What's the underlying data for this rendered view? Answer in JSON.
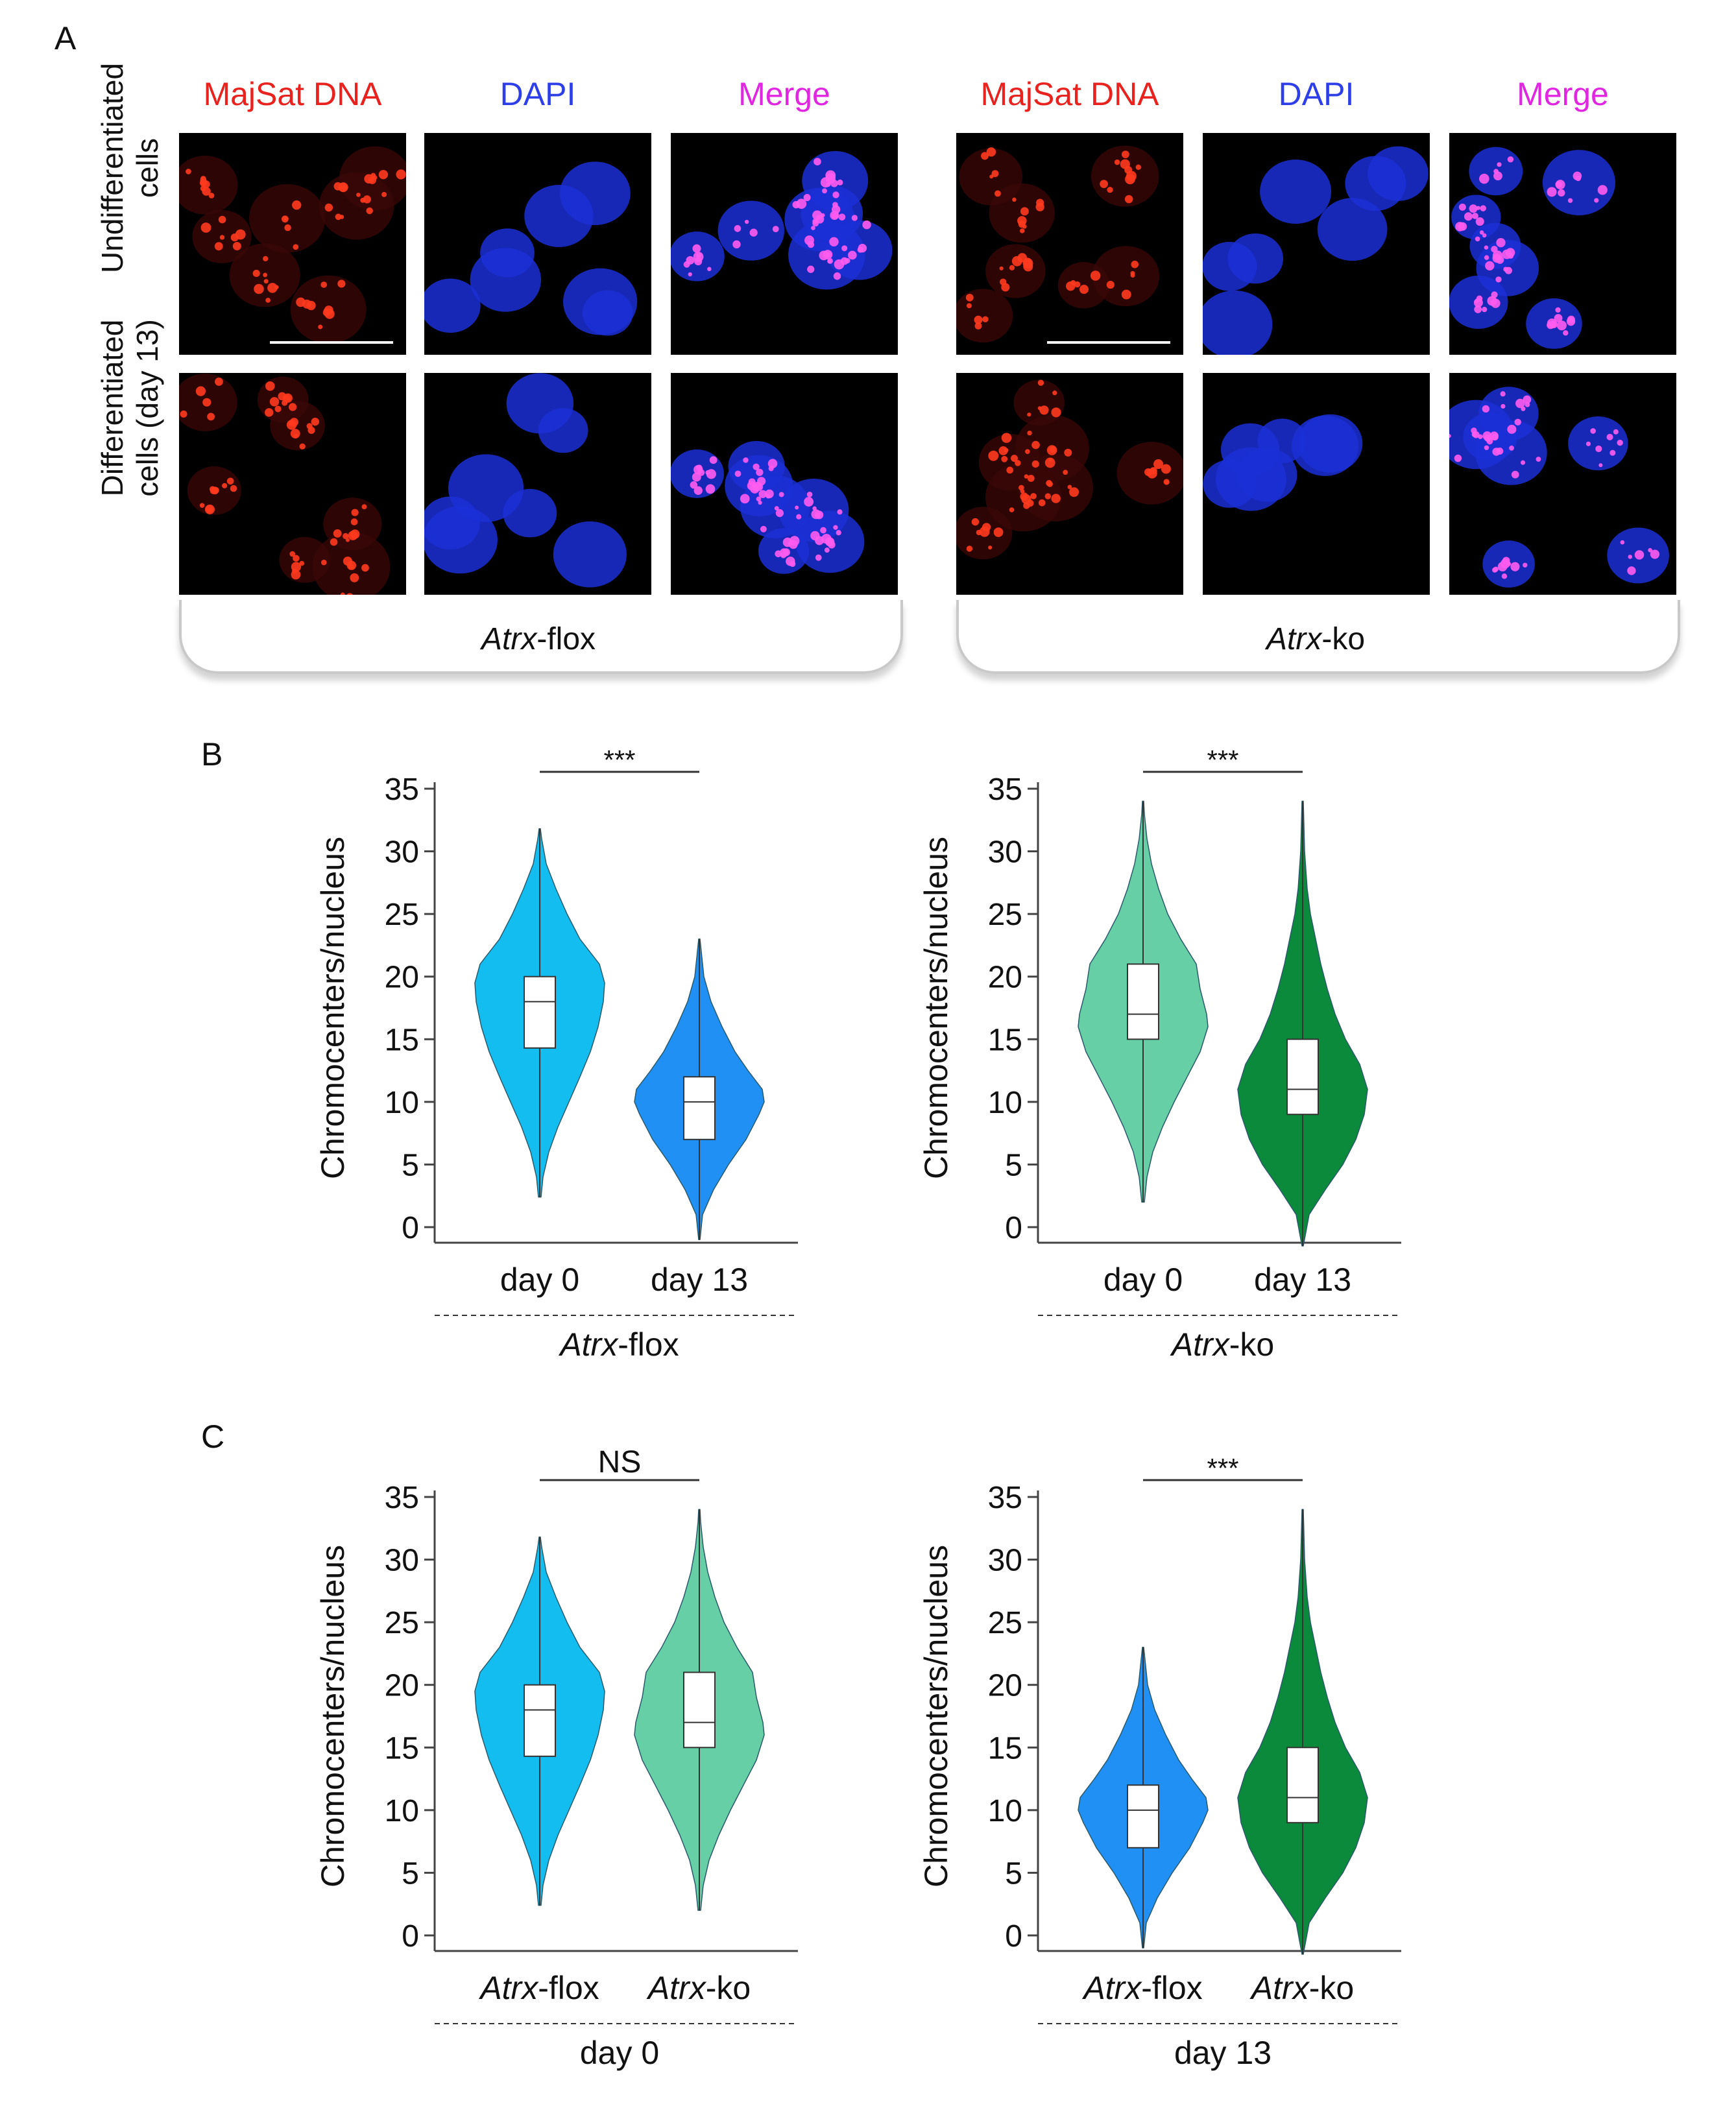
{
  "panelA": {
    "letter": "A",
    "groups": [
      {
        "channels": [
          {
            "label": "MajSat DNA",
            "color": "#e8221e"
          },
          {
            "label": "DAPI",
            "color": "#2f3fe8"
          },
          {
            "label": "Merge",
            "color": "#e026e0"
          }
        ],
        "genotype_italic": "Atrx",
        "genotype_suffix": "-flox"
      },
      {
        "channels": [
          {
            "label": "MajSat DNA",
            "color": "#e8221e"
          },
          {
            "label": "DAPI",
            "color": "#2f3fe8"
          },
          {
            "label": "Merge",
            "color": "#e026e0"
          }
        ],
        "genotype_italic": "Atrx",
        "genotype_suffix": "-ko"
      }
    ],
    "rows": [
      {
        "label_line1": "Undifferentiated",
        "label_line2": "cells"
      },
      {
        "label_line1": "Differentiated",
        "label_line2": "cells (day 13)"
      }
    ]
  },
  "panelB": {
    "letter": "B"
  },
  "panelC": {
    "letter": "C"
  },
  "chart_data": [
    {
      "type": "violin",
      "panel": "B",
      "ylabel": "Chromocenters/nucleus",
      "ylim": [
        0,
        35
      ],
      "yticks": [
        "0",
        "5",
        "10",
        "15",
        "20",
        "25",
        "30",
        "35"
      ],
      "categories": [
        {
          "italic": "",
          "text": "day 0"
        },
        {
          "italic": "",
          "text": "day 13"
        }
      ],
      "group_label": {
        "italic": "Atrx",
        "text": "-flox"
      },
      "significance": "***",
      "violins": [
        {
          "color": "#14bdf0",
          "min": 2.4,
          "max": 31.8,
          "q1": 14.3,
          "median": 18.0,
          "q3": 20.0,
          "whisker_low": 5.5,
          "whisker_high": 29.5,
          "profile": [
            [
              2.4,
              0.02
            ],
            [
              4,
              0.05
            ],
            [
              6,
              0.14
            ],
            [
              8,
              0.28
            ],
            [
              10,
              0.45
            ],
            [
              12,
              0.62
            ],
            [
              14,
              0.78
            ],
            [
              16,
              0.9
            ],
            [
              18,
              0.98
            ],
            [
              19.5,
              1.0
            ],
            [
              21,
              0.92
            ],
            [
              23,
              0.62
            ],
            [
              25,
              0.42
            ],
            [
              27,
              0.25
            ],
            [
              29,
              0.1
            ],
            [
              31,
              0.03
            ],
            [
              31.8,
              0.01
            ]
          ]
        },
        {
          "color": "#2090f5",
          "min": -1.0,
          "max": 23.0,
          "q1": 7.0,
          "median": 10.0,
          "q3": 12.0,
          "whisker_low": 2.0,
          "whisker_high": 20.0,
          "profile": [
            [
              -1,
              0.01
            ],
            [
              1,
              0.05
            ],
            [
              3,
              0.22
            ],
            [
              5,
              0.45
            ],
            [
              7,
              0.72
            ],
            [
              9,
              0.92
            ],
            [
              10,
              1.0
            ],
            [
              11,
              0.97
            ],
            [
              12.5,
              0.75
            ],
            [
              14,
              0.55
            ],
            [
              16,
              0.35
            ],
            [
              18,
              0.18
            ],
            [
              20,
              0.07
            ],
            [
              22,
              0.03
            ],
            [
              23,
              0.01
            ]
          ]
        }
      ]
    },
    {
      "type": "violin",
      "panel": "B",
      "ylabel": "Chromocenters/nucleus",
      "ylim": [
        0,
        35
      ],
      "yticks": [
        "0",
        "5",
        "10",
        "15",
        "20",
        "25",
        "30",
        "35"
      ],
      "categories": [
        {
          "italic": "",
          "text": "day 0"
        },
        {
          "italic": "",
          "text": "day 13"
        }
      ],
      "group_label": {
        "italic": "Atrx",
        "text": "-ko"
      },
      "significance": "***",
      "violins": [
        {
          "color": "#66cfa6",
          "min": 2.0,
          "max": 34.0,
          "q1": 15.0,
          "median": 17.0,
          "q3": 21.0,
          "whisker_low": 5.0,
          "whisker_high": 31.0,
          "profile": [
            [
              2,
              0.02
            ],
            [
              4,
              0.06
            ],
            [
              6,
              0.15
            ],
            [
              8,
              0.3
            ],
            [
              10,
              0.48
            ],
            [
              12,
              0.68
            ],
            [
              14,
              0.88
            ],
            [
              16,
              1.0
            ],
            [
              17,
              0.98
            ],
            [
              19,
              0.88
            ],
            [
              21,
              0.82
            ],
            [
              23,
              0.58
            ],
            [
              25,
              0.38
            ],
            [
              27,
              0.24
            ],
            [
              29,
              0.13
            ],
            [
              31,
              0.06
            ],
            [
              33,
              0.02
            ],
            [
              34,
              0.01
            ]
          ]
        },
        {
          "color": "#0c8a3c",
          "min": -1.5,
          "max": 34.0,
          "q1": 9.0,
          "median": 11.0,
          "q3": 15.0,
          "whisker_low": 2.0,
          "whisker_high": 30.0,
          "profile": [
            [
              -1.5,
              0.01
            ],
            [
              1,
              0.1
            ],
            [
              3,
              0.35
            ],
            [
              5,
              0.62
            ],
            [
              7,
              0.82
            ],
            [
              9,
              0.95
            ],
            [
              11,
              1.0
            ],
            [
              13,
              0.88
            ],
            [
              15,
              0.66
            ],
            [
              17,
              0.5
            ],
            [
              19,
              0.38
            ],
            [
              21,
              0.28
            ],
            [
              23,
              0.2
            ],
            [
              25,
              0.12
            ],
            [
              27,
              0.07
            ],
            [
              30,
              0.03
            ],
            [
              34,
              0.01
            ]
          ]
        }
      ]
    },
    {
      "type": "violin",
      "panel": "C",
      "ylabel": "Chromocenters/nucleus",
      "ylim": [
        0,
        35
      ],
      "yticks": [
        "0",
        "5",
        "10",
        "15",
        "20",
        "25",
        "30",
        "35"
      ],
      "categories": [
        {
          "italic": "Atrx",
          "text": "-flox"
        },
        {
          "italic": "Atrx",
          "text": "-ko"
        }
      ],
      "group_label": {
        "italic": "",
        "text": "day 0"
      },
      "significance": "NS",
      "violins": [
        {
          "color": "#14bdf0",
          "min": 2.4,
          "max": 31.8,
          "q1": 14.3,
          "median": 18.0,
          "q3": 20.0,
          "whisker_low": 5.5,
          "whisker_high": 29.5,
          "profile": [
            [
              2.4,
              0.02
            ],
            [
              4,
              0.05
            ],
            [
              6,
              0.14
            ],
            [
              8,
              0.28
            ],
            [
              10,
              0.45
            ],
            [
              12,
              0.62
            ],
            [
              14,
              0.78
            ],
            [
              16,
              0.9
            ],
            [
              18,
              0.98
            ],
            [
              19.5,
              1.0
            ],
            [
              21,
              0.92
            ],
            [
              23,
              0.62
            ],
            [
              25,
              0.42
            ],
            [
              27,
              0.25
            ],
            [
              29,
              0.1
            ],
            [
              31,
              0.03
            ],
            [
              31.8,
              0.01
            ]
          ]
        },
        {
          "color": "#66cfa6",
          "min": 2.0,
          "max": 34.0,
          "q1": 15.0,
          "median": 17.0,
          "q3": 21.0,
          "whisker_low": 5.0,
          "whisker_high": 31.0,
          "profile": [
            [
              2,
              0.02
            ],
            [
              4,
              0.06
            ],
            [
              6,
              0.15
            ],
            [
              8,
              0.3
            ],
            [
              10,
              0.48
            ],
            [
              12,
              0.68
            ],
            [
              14,
              0.88
            ],
            [
              16,
              1.0
            ],
            [
              17,
              0.98
            ],
            [
              19,
              0.88
            ],
            [
              21,
              0.82
            ],
            [
              23,
              0.58
            ],
            [
              25,
              0.38
            ],
            [
              27,
              0.24
            ],
            [
              29,
              0.13
            ],
            [
              31,
              0.06
            ],
            [
              33,
              0.02
            ],
            [
              34,
              0.01
            ]
          ]
        }
      ]
    },
    {
      "type": "violin",
      "panel": "C",
      "ylabel": "Chromocenters/nucleus",
      "ylim": [
        0,
        35
      ],
      "yticks": [
        "0",
        "5",
        "10",
        "15",
        "20",
        "25",
        "30",
        "35"
      ],
      "categories": [
        {
          "italic": "Atrx",
          "text": "-flox"
        },
        {
          "italic": "Atrx",
          "text": "-ko"
        }
      ],
      "group_label": {
        "italic": "",
        "text": "day 13"
      },
      "significance": "***",
      "violins": [
        {
          "color": "#2090f5",
          "min": -1.0,
          "max": 23.0,
          "q1": 7.0,
          "median": 10.0,
          "q3": 12.0,
          "whisker_low": 2.0,
          "whisker_high": 20.0,
          "profile": [
            [
              -1,
              0.01
            ],
            [
              1,
              0.05
            ],
            [
              3,
              0.22
            ],
            [
              5,
              0.45
            ],
            [
              7,
              0.72
            ],
            [
              9,
              0.92
            ],
            [
              10,
              1.0
            ],
            [
              11,
              0.97
            ],
            [
              12.5,
              0.75
            ],
            [
              14,
              0.55
            ],
            [
              16,
              0.35
            ],
            [
              18,
              0.18
            ],
            [
              20,
              0.07
            ],
            [
              22,
              0.03
            ],
            [
              23,
              0.01
            ]
          ]
        },
        {
          "color": "#0c8a3c",
          "min": -1.5,
          "max": 34.0,
          "q1": 9.0,
          "median": 11.0,
          "q3": 15.0,
          "whisker_low": 2.0,
          "whisker_high": 30.0,
          "profile": [
            [
              -1.5,
              0.01
            ],
            [
              1,
              0.1
            ],
            [
              3,
              0.35
            ],
            [
              5,
              0.62
            ],
            [
              7,
              0.82
            ],
            [
              9,
              0.95
            ],
            [
              11,
              1.0
            ],
            [
              13,
              0.88
            ],
            [
              15,
              0.66
            ],
            [
              17,
              0.5
            ],
            [
              19,
              0.38
            ],
            [
              21,
              0.28
            ],
            [
              23,
              0.2
            ],
            [
              25,
              0.12
            ],
            [
              27,
              0.07
            ],
            [
              30,
              0.03
            ],
            [
              34,
              0.01
            ]
          ]
        }
      ]
    }
  ]
}
